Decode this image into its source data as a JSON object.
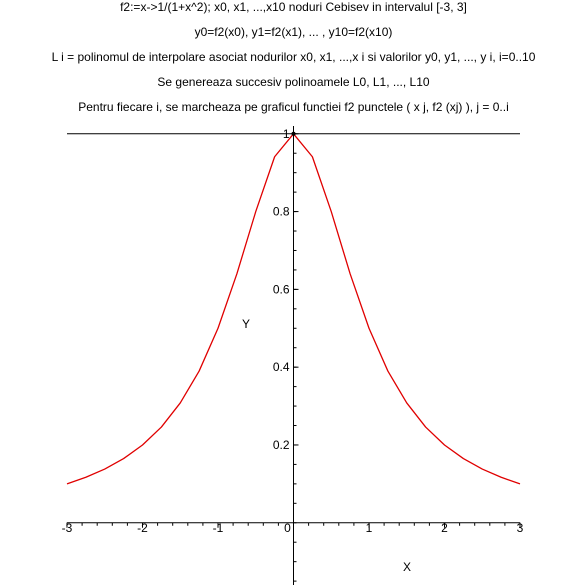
{
  "captions": [
    "f2:=x->1/(1+x^2); x0,  x1,  ...,x10 noduri Cebisev in intervalul [-3, 3]",
    "y0=f2(x0), y1=f2(x1), ... , y10=f2(x10)",
    "L i = polinomul de interpolare asociat nodurilor x0,  x1,  ...,x i si valorilor y0,  y1,  ..., y i,  i=0..10",
    "Se genereaza succesiv polinoamele L0, L1, ..., L10",
    "Pentru fiecare i, se marcheaza pe graficul functiei f2 punctele ( x j, f2 (xj) ),  j = 0..i"
  ],
  "chart_data": {
    "type": "line",
    "title": "",
    "xlabel": "X",
    "ylabel": "Y",
    "xlim": [
      -3,
      3
    ],
    "ylim": [
      -0.16,
      1.02
    ],
    "x_ticks": [
      -3,
      -2,
      -1,
      0,
      1,
      2,
      3
    ],
    "x_tick_labels": [
      "-3",
      "-2",
      "-1",
      "0",
      "1",
      "2",
      "3"
    ],
    "y_ticks": [
      0.2,
      0.4,
      0.6,
      0.8,
      1
    ],
    "y_tick_labels": [
      "0.2",
      "0.4",
      "0.6",
      "0.8",
      "1"
    ],
    "grid": false,
    "series": [
      {
        "color": "#e00000",
        "x": [
          -3,
          -2.75,
          -2.5,
          -2.25,
          -2,
          -1.75,
          -1.5,
          -1.25,
          -1,
          -0.75,
          -0.5,
          -0.25,
          0,
          0.25,
          0.5,
          0.75,
          1,
          1.25,
          1.5,
          1.75,
          2,
          2.25,
          2.5,
          2.75,
          3
        ],
        "y": [
          0.1,
          0.117,
          0.138,
          0.165,
          0.2,
          0.246,
          0.308,
          0.39,
          0.5,
          0.64,
          0.8,
          0.941,
          1,
          0.941,
          0.8,
          0.64,
          0.5,
          0.39,
          0.308,
          0.246,
          0.2,
          0.165,
          0.138,
          0.117,
          0.1
        ]
      }
    ],
    "horizontal_lines": [
      {
        "y": 1,
        "color": "#000000"
      }
    ],
    "points": [
      {
        "x": 0,
        "y": 1,
        "color": "#000000"
      }
    ]
  }
}
